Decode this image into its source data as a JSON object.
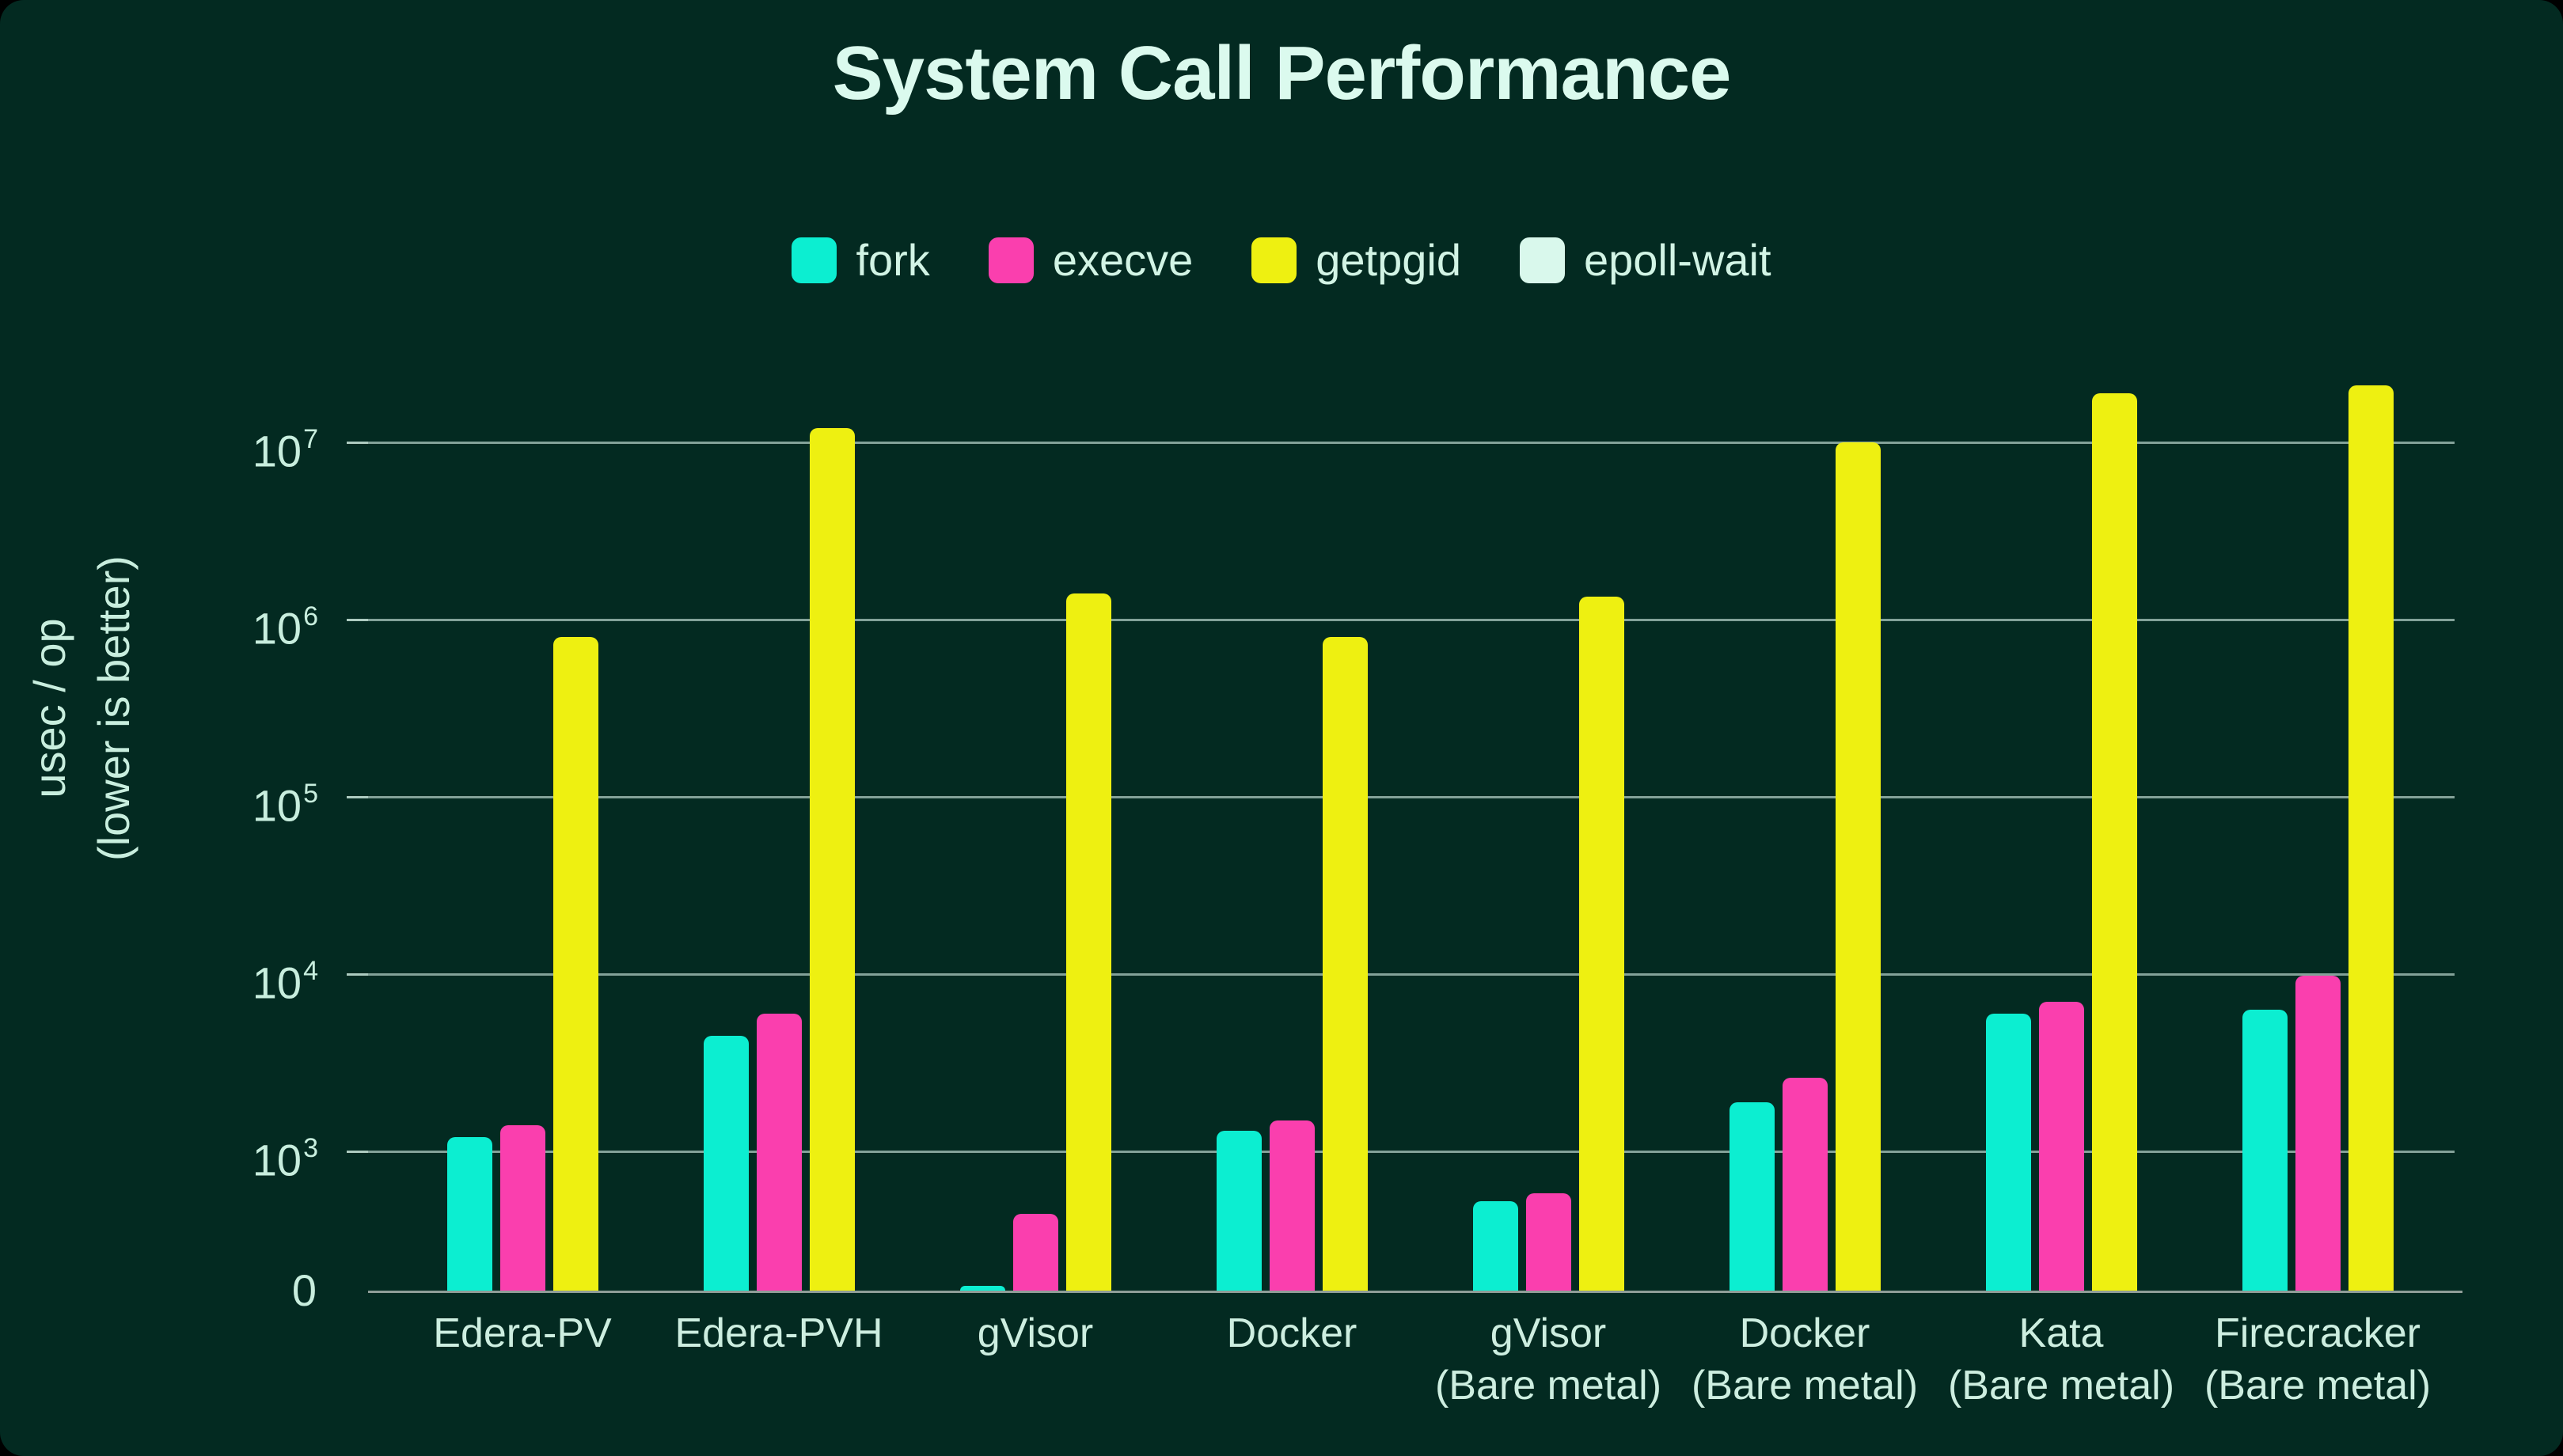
{
  "title": "System Call Performance",
  "yaxis_title": "usec / op\n(lower is better)",
  "colors": {
    "background": "#032a21",
    "title_text": "#dbfaee",
    "axis_text": "#c8eede",
    "gridline": "rgba(216,244,233,0.6)",
    "baseline": "#8f9e98",
    "fork": "#0ceed1",
    "execve": "#fa3fae",
    "getpgid": "#eef011",
    "epoll_wait": "#d9f8ec"
  },
  "chart_data": {
    "type": "bar",
    "title": "System Call Performance",
    "xlabel": "",
    "ylabel": "usec / op (lower is better)",
    "scale": "log above 1e3, linear 0-1e3 below (0 baseline shown)",
    "grid": true,
    "legend_position": "top-center",
    "ylim": [
      0,
      30000000
    ],
    "yaxis": {
      "ticks": [
        10000000,
        1000000,
        100000,
        10000,
        1000,
        0
      ]
    },
    "categories": [
      "Edera-PV",
      "Edera-PVH",
      "gVisor",
      "Docker",
      "gVisor\n(Bare metal)",
      "Docker\n(Bare metal)",
      "Kata\n(Bare metal)",
      "Firecracker\n(Bare metal)"
    ],
    "series": [
      {
        "name": "fork",
        "color": "#0ceed1",
        "values": [
          1200,
          4500,
          35,
          1300,
          640,
          1900,
          6000,
          6300
        ]
      },
      {
        "name": "execve",
        "color": "#fa3fae",
        "values": [
          1400,
          6000,
          550,
          1500,
          700,
          2600,
          7000,
          9800
        ]
      },
      {
        "name": "getpgid",
        "color": "#eef011",
        "values": [
          800000,
          12000000,
          1400000,
          800000,
          1350000,
          10000000,
          19000000,
          21000000
        ]
      },
      {
        "name": "epoll-wait",
        "color": "#d9f8ec",
        "values": [
          0,
          0,
          0,
          0,
          0,
          0,
          0,
          0
        ]
      }
    ]
  }
}
